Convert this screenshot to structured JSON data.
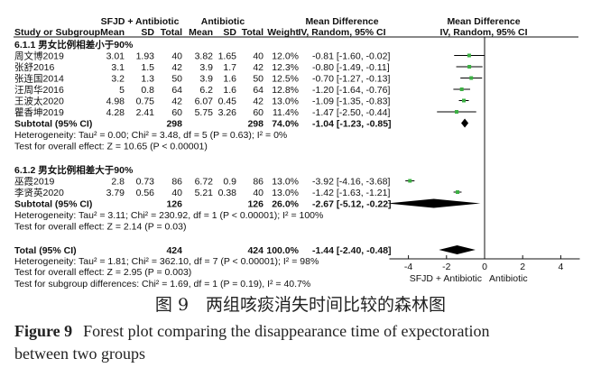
{
  "header": {
    "group_exp": "SFJD + Antibiotic",
    "group_ctl": "Antibiotic",
    "col_study": "Study or Subgroup",
    "col_mean": "Mean",
    "col_sd": "SD",
    "col_total": "Total",
    "col_weight": "Weight",
    "col_md_title": "Mean Difference",
    "col_md_method": "IV, Random, 95% CI"
  },
  "subgroups": [
    {
      "label": "6.1.1 男女比例相差小于90%",
      "studies": [
        {
          "study": "周文博2019",
          "mean_e": "3.01",
          "sd_e": "1.93",
          "n_e": "40",
          "mean_c": "3.82",
          "sd_c": "1.65",
          "n_c": "40",
          "weight": "12.0%",
          "ci_text": "-0.81 [-1.60, -0.02]",
          "md": -0.81,
          "lo": -1.6,
          "hi": -0.02
        },
        {
          "study": "张舒2016",
          "mean_e": "3.1",
          "sd_e": "1.5",
          "n_e": "42",
          "mean_c": "3.9",
          "sd_c": "1.7",
          "n_c": "42",
          "weight": "12.3%",
          "ci_text": "-0.80 [-1.49, -0.11]",
          "md": -0.8,
          "lo": -1.49,
          "hi": -0.11
        },
        {
          "study": "张连国2014",
          "mean_e": "3.2",
          "sd_e": "1.3",
          "n_e": "50",
          "mean_c": "3.9",
          "sd_c": "1.6",
          "n_c": "50",
          "weight": "12.5%",
          "ci_text": "-0.70 [-1.27, -0.13]",
          "md": -0.7,
          "lo": -1.27,
          "hi": -0.13
        },
        {
          "study": "汪周华2016",
          "mean_e": "5",
          "sd_e": "0.8",
          "n_e": "64",
          "mean_c": "6.2",
          "sd_c": "1.6",
          "n_c": "64",
          "weight": "12.8%",
          "ci_text": "-1.20 [-1.64, -0.76]",
          "md": -1.2,
          "lo": -1.64,
          "hi": -0.76
        },
        {
          "study": "王波太2020",
          "mean_e": "4.98",
          "sd_e": "0.75",
          "n_e": "42",
          "mean_c": "6.07",
          "sd_c": "0.45",
          "n_c": "42",
          "weight": "13.0%",
          "ci_text": "-1.09 [-1.35, -0.83]",
          "md": -1.09,
          "lo": -1.35,
          "hi": -0.83
        },
        {
          "study": "瞿香坤2019",
          "mean_e": "4.28",
          "sd_e": "2.41",
          "n_e": "60",
          "mean_c": "5.75",
          "sd_c": "3.26",
          "n_c": "60",
          "weight": "11.4%",
          "ci_text": "-1.47 [-2.50, -0.44]",
          "md": -1.47,
          "lo": -2.5,
          "hi": -0.44
        }
      ],
      "subtotal": {
        "label": "Subtotal (95% CI)",
        "n_e": "298",
        "n_c": "298",
        "weight": "74.0%",
        "ci_text": "-1.04 [-1.23, -0.85]",
        "md": -1.04,
        "lo": -1.23,
        "hi": -0.85
      },
      "heterogeneity": "Heterogeneity: Tau² = 0.00; Chi² = 3.48, df = 5 (P = 0.63); I² = 0%",
      "overall": "Test for overall effect: Z = 10.65 (P < 0.00001)"
    },
    {
      "label": "6.1.2 男女比例相差大于90%",
      "studies": [
        {
          "study": "巫霞2019",
          "mean_e": "2.8",
          "sd_e": "0.73",
          "n_e": "86",
          "mean_c": "6.72",
          "sd_c": "0.9",
          "n_c": "86",
          "weight": "13.0%",
          "ci_text": "-3.92 [-4.16, -3.68]",
          "md": -3.92,
          "lo": -4.16,
          "hi": -3.68
        },
        {
          "study": "李贤英2020",
          "mean_e": "3.79",
          "sd_e": "0.56",
          "n_e": "40",
          "mean_c": "5.21",
          "sd_c": "0.38",
          "n_c": "40",
          "weight": "13.0%",
          "ci_text": "-1.42 [-1.63, -1.21]",
          "md": -1.42,
          "lo": -1.63,
          "hi": -1.21
        }
      ],
      "subtotal": {
        "label": "Subtotal (95% CI)",
        "n_e": "126",
        "n_c": "126",
        "weight": "26.0%",
        "ci_text": "-2.67 [-5.12, -0.22]",
        "md": -2.67,
        "lo": -5.12,
        "hi": -0.22
      },
      "heterogeneity": "Heterogeneity: Tau² = 3.11; Chi² = 230.92, df = 1 (P < 0.00001); I² = 100%",
      "overall": "Test for overall effect: Z = 2.14 (P = 0.03)"
    }
  ],
  "total": {
    "label": "Total (95% CI)",
    "n_e": "424",
    "n_c": "424",
    "weight": "100.0%",
    "ci_text": "-1.44 [-2.40, -0.48]",
    "md": -1.44,
    "lo": -2.4,
    "hi": -0.48,
    "heterogeneity": "Heterogeneity: Tau² = 1.81; Chi² = 362.10, df = 7 (P < 0.00001); I² = 98%",
    "overall": "Test for overall effect: Z = 2.95 (P = 0.003)",
    "subgroup_diff": "Test for subgroup differences: Chi² = 1.69, df = 1 (P = 0.19), I² = 40.7%"
  },
  "chart_data": {
    "type": "forest",
    "xlim": [
      -5,
      5
    ],
    "ticks": [
      "-4",
      "-2",
      "0",
      "2",
      "4"
    ],
    "tick_values": [
      -4,
      -2,
      0,
      2,
      4
    ],
    "xlabel_left": "SFJD + Antibiotic",
    "xlabel_right": "Antibiotic",
    "colors": {
      "square": "#3cb043",
      "line": "#000000",
      "diamond": "#000000"
    }
  },
  "caption": {
    "cn": "图 9　两组咳痰消失时间比较的森林图",
    "en_bold": "Figure 9",
    "en_line1": "Forest plot comparing the disappearance time of expectoration",
    "en_line2": "between two groups"
  }
}
